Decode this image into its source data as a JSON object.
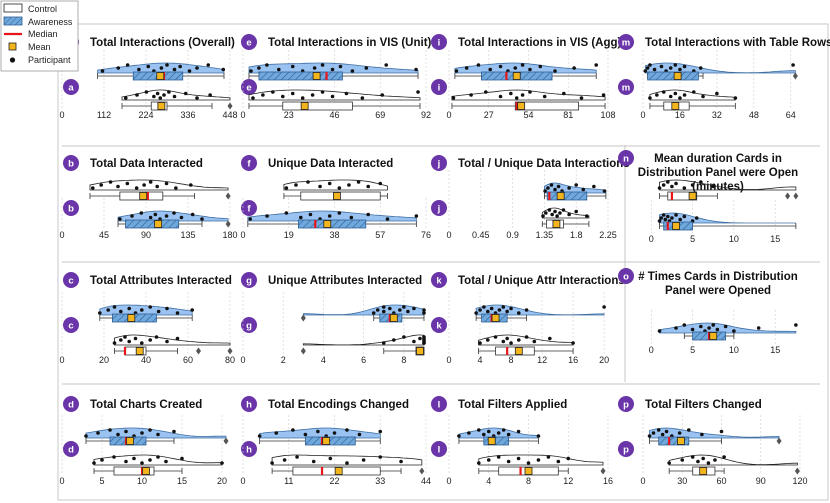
{
  "figure": {
    "colors": {
      "awareness": "#6fa8dc",
      "awareness_dark": "#3d6ea3",
      "violin": "#8ab8ee",
      "control": "#ffffff",
      "median": "#e8141c",
      "mean": "#f2b51b",
      "badge": "#6a35a8",
      "point": "#111111",
      "grid": "#d0d0d0"
    }
  },
  "legend": {
    "items": [
      {
        "key": "control",
        "label": "Control"
      },
      {
        "key": "awareness",
        "label": "Awareness"
      },
      {
        "key": "median",
        "label": "Median"
      },
      {
        "key": "mean",
        "label": "Mean"
      },
      {
        "key": "participant",
        "label": "Participant"
      }
    ]
  },
  "chart_data": [
    {
      "id": "a",
      "type": "box",
      "title": "Total Interactions (Overall)",
      "xlim": [
        0,
        448
      ],
      "ticks": [
        0,
        112,
        224,
        336,
        448
      ],
      "awareness": {
        "whislo": 95,
        "q1": 190,
        "med": 272,
        "mean": 262,
        "q3": 322,
        "whishi": 432,
        "points": [
          108,
          150,
          175,
          205,
          230,
          245,
          265,
          280,
          300,
          315,
          340,
          360,
          390,
          430
        ]
      },
      "control": {
        "whislo": 160,
        "q1": 238,
        "med": 260,
        "mean": 265,
        "q3": 280,
        "whishi": 400,
        "points": [
          170,
          200,
          225,
          245,
          255,
          262,
          272,
          285,
          300,
          330,
          360,
          395
        ],
        "outliers": [
          448
        ]
      }
    },
    {
      "id": "e",
      "type": "box",
      "title": "Total Interactions in VIS (Unit)",
      "xlim": [
        0,
        92
      ],
      "ticks": [
        0,
        23,
        46,
        69,
        92
      ],
      "awareness": {
        "whislo": 3,
        "q1": 8,
        "med": 42,
        "mean": 37,
        "q3": 50,
        "whishi": 88,
        "points": [
          4,
          8,
          12,
          18,
          25,
          30,
          36,
          40,
          45,
          49,
          55,
          62,
          72,
          87
        ]
      },
      "control": {
        "whislo": 3,
        "q1": 20,
        "med": 31,
        "mean": 31,
        "q3": 55,
        "whishi": 89,
        "points": [
          5,
          10,
          15,
          20,
          25,
          30,
          35,
          40,
          45,
          52,
          60,
          70,
          88
        ]
      }
    },
    {
      "id": "i",
      "type": "box",
      "title": "Total Interactions in VIS (Agg)",
      "xlim": [
        0,
        108
      ],
      "ticks": [
        0,
        27,
        54,
        81,
        108
      ],
      "awareness": {
        "whislo": 4,
        "q1": 22,
        "med": 39,
        "mean": 46,
        "q3": 70,
        "whishi": 100,
        "points": [
          5,
          12,
          20,
          28,
          35,
          40,
          45,
          50,
          55,
          62,
          72,
          85,
          100
        ]
      },
      "control": {
        "whislo": 2,
        "q1": 45,
        "med": 46,
        "mean": 49,
        "q3": 88,
        "whishi": 106,
        "points": [
          3,
          15,
          25,
          35,
          42,
          46,
          50,
          55,
          65,
          78,
          90,
          105
        ]
      }
    },
    {
      "id": "m",
      "type": "box",
      "title": "Total Interactions with Table Rows",
      "xlim": [
        0,
        68
      ],
      "ticks": [
        0,
        16,
        32,
        48,
        64
      ],
      "awareness": {
        "whislo": 2,
        "q1": 2,
        "med": 14,
        "mean": 15,
        "q3": 24,
        "whishi": 26,
        "points": [
          1,
          2,
          3,
          5,
          8,
          10,
          12,
          14,
          16,
          18,
          22,
          25,
          65
        ],
        "outliers": [
          66
        ]
      },
      "control": {
        "whislo": 3,
        "q1": 9,
        "med": 14,
        "mean": 14,
        "q3": 20,
        "whishi": 40,
        "points": [
          3,
          6,
          9,
          12,
          14,
          16,
          18,
          22,
          26,
          32,
          40
        ]
      }
    },
    {
      "id": "b",
      "type": "box",
      "title": "Total Data Interacted",
      "xlim": [
        0,
        180
      ],
      "ticks": [
        0,
        45,
        90,
        135,
        180
      ],
      "awareness": {
        "whislo": 60,
        "q1": 68,
        "med": 103,
        "mean": 103,
        "q3": 125,
        "whishi": 150,
        "points": [
          62,
          75,
          85,
          95,
          100,
          105,
          112,
          120,
          128,
          140,
          150
        ],
        "outliers": [
          178
        ]
      },
      "control": {
        "whislo": 30,
        "q1": 62,
        "med": 92,
        "mean": 87,
        "q3": 108,
        "whishi": 142,
        "points": [
          33,
          42,
          52,
          60,
          70,
          80,
          88,
          95,
          102,
          112,
          122,
          138
        ],
        "outliers": [
          178
        ]
      }
    },
    {
      "id": "f",
      "type": "box",
      "title": "Unique Data Interacted",
      "xlim": [
        0,
        76
      ],
      "ticks": [
        0,
        19,
        38,
        57,
        76
      ],
      "awareness": {
        "whislo": 2,
        "q1": 23,
        "med": 30,
        "mean": 35,
        "q3": 51,
        "whishi": 72,
        "points": [
          3,
          10,
          18,
          24,
          28,
          32,
          36,
          40,
          45,
          52,
          60,
          72
        ]
      },
      "control": {
        "whislo": 17,
        "q1": 24,
        "med": 40,
        "mean": 39,
        "q3": 57,
        "whishi": 60,
        "points": [
          18,
          22,
          27,
          32,
          36,
          40,
          44,
          48,
          52,
          57
        ]
      }
    },
    {
      "id": "j",
      "type": "box",
      "title": "Total / Unique Data Interactions",
      "xlim": [
        0,
        2.25
      ],
      "ticks": [
        0,
        0.45,
        0.9,
        1.35,
        1.8,
        2.25
      ],
      "awareness": {
        "whislo": 1.35,
        "q1": 1.39,
        "med": 1.42,
        "mean": 1.58,
        "q3": 1.95,
        "whishi": 2.22,
        "points": [
          1.36,
          1.4,
          1.45,
          1.5,
          1.55,
          1.6,
          1.7,
          1.8,
          1.9,
          2.05,
          2.2
        ]
      },
      "control": {
        "whislo": 1.32,
        "q1": 1.38,
        "med": 1.48,
        "mean": 1.52,
        "q3": 1.62,
        "whishi": 1.98,
        "points": [
          1.33,
          1.37,
          1.42,
          1.46,
          1.5,
          1.53,
          1.57,
          1.62,
          1.7,
          1.8,
          1.95
        ]
      }
    },
    {
      "id": "n",
      "type": "box",
      "title": "Mean duration Cards in Distribution Panel were Open (minutes)",
      "title_lines": [
        "Mean duration Cards in",
        "Distribution Panel were Open",
        "(minutes)"
      ],
      "xlim": [
        -1,
        18
      ],
      "ticks": [
        0,
        5,
        10,
        15
      ],
      "awareness": {
        "whislo": 1,
        "q1": 1.5,
        "med": 2,
        "mean": 3,
        "q3": 5,
        "whishi": 17.5,
        "points": [
          1,
          1.2,
          1.5,
          1.7,
          2,
          2.2,
          2.5,
          3,
          3.5,
          4,
          5,
          5.5
        ]
      },
      "control": {
        "whislo": 1,
        "q1": 2,
        "med": 2.5,
        "mean": 5,
        "q3": 5.5,
        "whishi": 8,
        "points": [
          1,
          1.5,
          2,
          2.5,
          3,
          4,
          5,
          6,
          7.5
        ],
        "outliers": [
          16.5,
          17.5
        ]
      }
    },
    {
      "id": "c",
      "type": "box",
      "title": "Total Attributes Interacted",
      "xlim": [
        0,
        80
      ],
      "ticks": [
        0,
        20,
        40,
        60,
        80
      ],
      "awareness": {
        "whislo": 18,
        "q1": 24,
        "med": 32,
        "mean": 33,
        "q3": 45,
        "whishi": 62,
        "points": [
          18,
          22,
          25,
          28,
          32,
          35,
          38,
          42,
          46,
          50,
          55,
          62
        ]
      },
      "control": {
        "whislo": 25,
        "q1": 30,
        "med": 30,
        "mean": 37,
        "q3": 40,
        "whishi": 55,
        "points": [
          25,
          28,
          30,
          32,
          35,
          38,
          42,
          45,
          50,
          55
        ],
        "outliers": [
          65,
          80
        ]
      }
    },
    {
      "id": "g",
      "type": "box",
      "title": "Unique Attributes Interacted",
      "xlim": [
        0,
        9.1
      ],
      "ticks": [
        0,
        2,
        4,
        6,
        8
      ],
      "awareness": {
        "whislo": 6.5,
        "q1": 6.8,
        "med": 7.3,
        "mean": 7.5,
        "q3": 7.9,
        "whishi": 9.0,
        "points": [
          6.5,
          6.7,
          7,
          7,
          7.3,
          7.5,
          7.8,
          8,
          8.2,
          8.5,
          9,
          9
        ],
        "outliers": [
          3
        ]
      },
      "control": {
        "whislo": 7,
        "q1": 8.6,
        "med": 8.9,
        "mean": 8.8,
        "q3": 9.0,
        "whishi": 9.0,
        "points": [
          7,
          7.5,
          8,
          8.5,
          8.8,
          9,
          9,
          9,
          9,
          9,
          9
        ],
        "outliers": [
          3
        ]
      }
    },
    {
      "id": "k",
      "type": "box",
      "title": "Total / Unique Attr Interactions",
      "xlim": [
        0,
        20.5
      ],
      "ticks": [
        0,
        4,
        8,
        12,
        16,
        20
      ],
      "awareness": {
        "whislo": 3.5,
        "q1": 4.2,
        "med": 5.5,
        "mean": 6,
        "q3": 7.5,
        "whishi": 10,
        "points": [
          3.5,
          4,
          4.5,
          5,
          5.5,
          6,
          6.5,
          7,
          7.5,
          8,
          9,
          10,
          20
        ]
      },
      "control": {
        "whislo": 3.8,
        "q1": 6,
        "med": 7.5,
        "mean": 9,
        "q3": 11,
        "whishi": 16,
        "points": [
          4,
          5,
          6,
          7,
          7.5,
          8,
          9,
          10,
          11,
          13,
          16
        ]
      }
    },
    {
      "id": "o",
      "type": "box",
      "title": "# Times Cards in Distribution Panel were Opened",
      "title_lines": [
        "# Times Cards in Distribution",
        "Panel were Opened"
      ],
      "xlim": [
        -1,
        18
      ],
      "ticks": [
        0,
        5,
        10,
        15
      ],
      "awareness": {
        "whislo": 4,
        "q1": 5,
        "med": 7,
        "mean": 7.5,
        "q3": 9,
        "whishi": 10,
        "points": [
          1,
          3,
          4,
          5,
          6,
          6.5,
          7,
          7.5,
          8,
          9,
          10,
          13,
          17.5
        ]
      }
    },
    {
      "id": "d",
      "type": "box",
      "title": "Total Charts Created",
      "xlim": [
        0,
        21
      ],
      "ticks": [
        0,
        5,
        10,
        15,
        20
      ],
      "awareness": {
        "whislo": 3,
        "q1": 6,
        "med": 8,
        "mean": 8.5,
        "q3": 10.5,
        "whishi": 14,
        "points": [
          3,
          4.5,
          6,
          7,
          8,
          9,
          10,
          11,
          12,
          14
        ],
        "outliers": [
          20.5
        ]
      },
      "control": {
        "whislo": 4,
        "q1": 6.5,
        "med": 10,
        "mean": 10.5,
        "q3": 11.5,
        "whishi": 15,
        "points": [
          4,
          5,
          6.5,
          8,
          9,
          10,
          11,
          12,
          13,
          15,
          20
        ]
      }
    },
    {
      "id": "h",
      "type": "box",
      "title": "Total Encodings Changed",
      "xlim": [
        0,
        44
      ],
      "ticks": [
        0,
        11,
        22,
        33,
        44
      ],
      "awareness": {
        "whislo": 4,
        "q1": 15,
        "med": 19,
        "mean": 20,
        "q3": 27,
        "whishi": 33,
        "points": [
          4,
          8,
          12,
          15,
          18,
          20,
          22,
          25,
          28,
          33
        ]
      },
      "control": {
        "whislo": 7,
        "q1": 12,
        "med": 19,
        "mean": 23,
        "q3": 33,
        "whishi": 38,
        "points": [
          7,
          10,
          13,
          17,
          21,
          25,
          29,
          33,
          38
        ],
        "outliers": [
          43
        ]
      }
    },
    {
      "id": "l",
      "type": "box",
      "title": "Total Filters Applied",
      "xlim": [
        0,
        16
      ],
      "ticks": [
        0,
        4,
        8,
        12,
        16
      ],
      "awareness": {
        "whislo": 1,
        "q1": 3.5,
        "med": 4.2,
        "mean": 4.3,
        "q3": 6,
        "whishi": 9,
        "points": [
          1,
          2,
          3,
          3.5,
          4,
          4.5,
          5,
          5.5,
          6,
          7,
          9
        ]
      },
      "control": {
        "whislo": 3,
        "q1": 5,
        "med": 7.2,
        "mean": 8,
        "q3": 11,
        "whishi": 12,
        "points": [
          3,
          4,
          5,
          6,
          7,
          8,
          9,
          10,
          11,
          12
        ],
        "outliers": [
          15.5
        ]
      }
    },
    {
      "id": "p",
      "type": "box",
      "title": "Total Filters Changed",
      "xlim": [
        0,
        120
      ],
      "ticks": [
        0,
        30,
        60,
        90,
        120
      ],
      "awareness": {
        "whislo": 5,
        "q1": 12,
        "med": 20,
        "mean": 29,
        "q3": 35,
        "whishi": 60,
        "points": [
          5,
          8,
          12,
          15,
          18,
          22,
          28,
          35,
          45,
          60
        ],
        "outliers": [
          104
        ]
      },
      "control": {
        "whislo": 20,
        "q1": 38,
        "med": 44,
        "mean": 46,
        "q3": 55,
        "whishi": 62,
        "points": [
          20,
          30,
          38,
          42,
          46,
          50,
          55,
          62
        ],
        "outliers": [
          118
        ]
      }
    }
  ]
}
